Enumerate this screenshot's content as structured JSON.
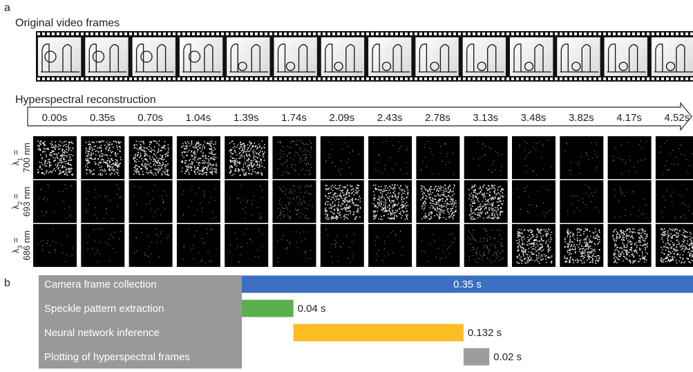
{
  "panel_a": {
    "label": "a",
    "film_title": "Original video frames",
    "reconstruction_title": "Hyperspectral reconstruction",
    "times": [
      "0.00s",
      "0.35s",
      "0.70s",
      "1.04s",
      "1.39s",
      "1.74s",
      "2.09s",
      "2.43s",
      "2.78s",
      "3.13s",
      "3.48s",
      "3.82s",
      "4.17s",
      "4.52s"
    ],
    "rows": [
      {
        "symbol": "λ",
        "sub": "1",
        "eq": " =",
        "wavelength": "700 nm"
      },
      {
        "symbol": "λ",
        "sub": "2",
        "eq": " =",
        "wavelength": "693 nm"
      },
      {
        "symbol": "λ",
        "sub": "3",
        "eq": " =",
        "wavelength": "686 nm"
      }
    ]
  },
  "panel_b": {
    "label": "b"
  },
  "chart_data": {
    "type": "bar",
    "orientation": "horizontal",
    "categories": [
      "Camera frame collection",
      "Speckle pattern extraction",
      "Neural network inference",
      "Plotting of hyperspectral frames"
    ],
    "values": [
      0.35,
      0.04,
      0.132,
      0.02
    ],
    "value_labels": [
      "0.35 s",
      "0.04 s",
      "0.132 s",
      "0.02 s"
    ],
    "colors": [
      "#3a6fc1",
      "#5bb04e",
      "#fbbd23",
      "#9c9c9c"
    ]
  }
}
